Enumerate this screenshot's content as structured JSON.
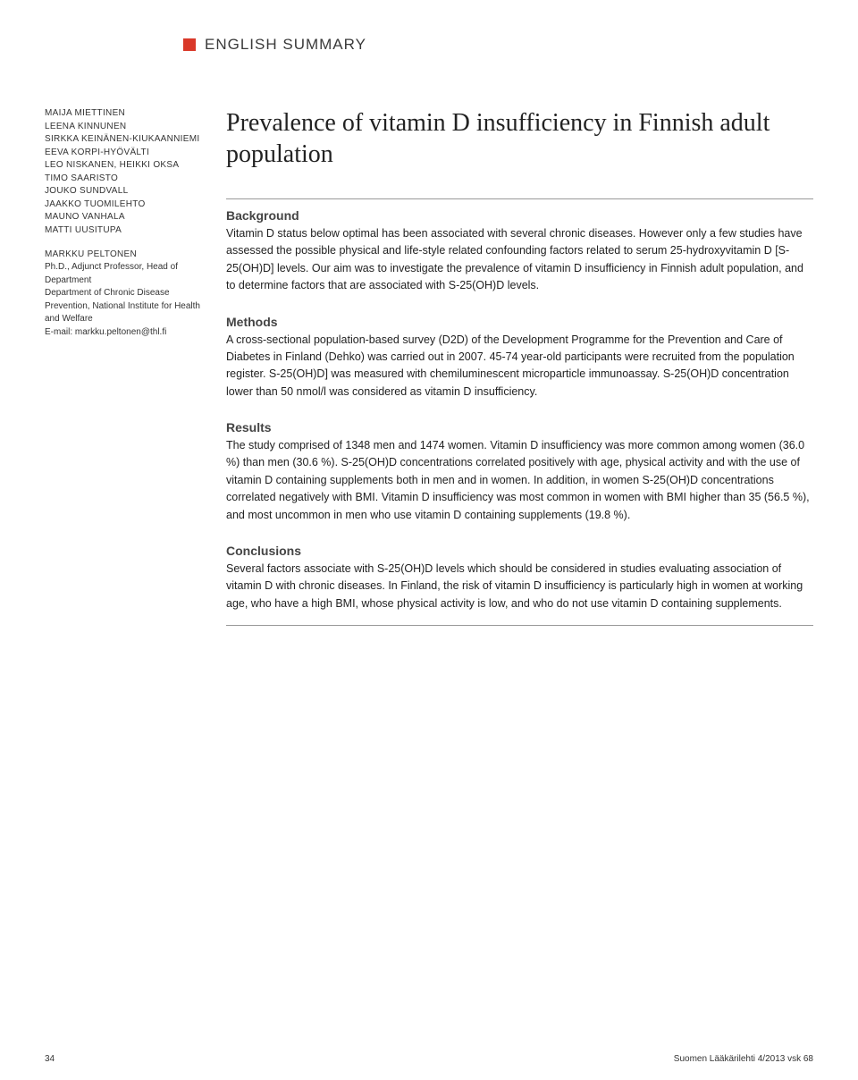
{
  "header": {
    "section_label": "ENGLISH SUMMARY"
  },
  "sidebar": {
    "authors": [
      "MAIJA MIETTINEN",
      "LEENA KINNUNEN",
      "SIRKKA KEINÄNEN-KIUKAANNIEMI",
      "EEVA KORPI-HYÖVÄLTI",
      "LEO NISKANEN, HEIKKI OKSA",
      "TIMO SAARISTO",
      "JOUKO SUNDVALL",
      "JAAKKO TUOMILEHTO",
      "MAUNO VANHALA",
      "MATTI UUSITUPA"
    ],
    "main_author": "MARKKU PELTONEN",
    "credentials": "Ph.D., Adjunct Professor, Head of Department\nDepartment of Chronic Disease Prevention, National Institute for Health and Welfare\nE-mail: markku.peltonen@thl.fi"
  },
  "main": {
    "title": "Prevalence of vitamin D insufficiency in Finnish adult population",
    "sections": [
      {
        "heading": "Background",
        "text": "Vitamin D status below optimal has been associated with several chronic diseases. However only a few studies have assessed the possible physical and life-style related confounding factors related to serum 25-hydroxyvitamin D [S-25(OH)D] levels. Our aim was to investigate the prevalence of vitamin D insufficiency in Finnish adult population, and to determine factors that are associated with S-25(OH)D levels."
      },
      {
        "heading": "Methods",
        "text": "A cross-sectional population-based survey (D2D) of the Development Programme for the Prevention and Care of Diabetes in Finland (Dehko) was carried out in 2007. 45-74 year-old participants were recruited from the population register. S-25(OH)D] was measured with chemiluminescent microparticle immunoassay. S-25(OH)D concentration lower than 50 nmol/l was considered as vitamin D insufficiency."
      },
      {
        "heading": "Results",
        "text": "The study comprised of 1348 men and 1474 women. Vitamin D insufficiency was more common among women (36.0 %) than men (30.6 %). S-25(OH)D concentrations correlated positively with age, physical activity and with the use of vitamin D containing supplements both in men and in women. In addition, in women S-25(OH)D concentrations correlated negatively with BMI. Vitamin D insufficiency was most common in women with BMI higher than 35 (56.5 %), and most uncommon in men who use vitamin D containing supplements (19.8 %)."
      },
      {
        "heading": "Conclusions",
        "text": "Several factors associate with S-25(OH)D levels which should be considered in studies evaluating association of vitamin D with chronic diseases. In Finland, the risk of vitamin D insufficiency is particularly high in women at working age, who have a high BMI, whose physical activity is low, and who do not use vitamin D containing supplements."
      }
    ]
  },
  "footer": {
    "page_number": "34",
    "journal": "Suomen Lääkärilehti 4/2013 vsk 68"
  }
}
